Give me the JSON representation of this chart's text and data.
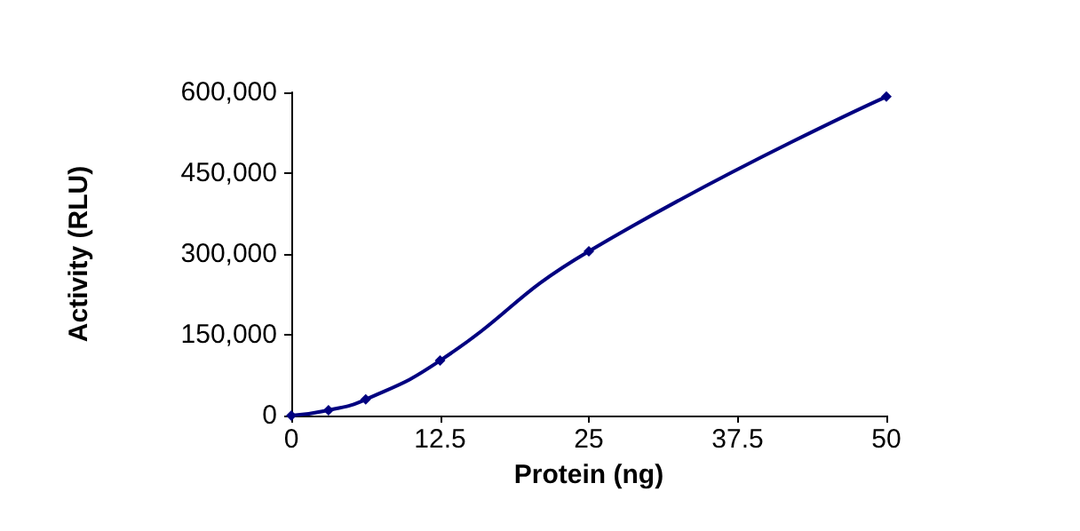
{
  "chart_data": {
    "type": "line",
    "xlabel": "Protein (ng)",
    "ylabel": "Activity (RLU)",
    "x": [
      0,
      3.125,
      6.25,
      12.5,
      25,
      50
    ],
    "series": [
      {
        "color": "#000080",
        "values": [
          0,
          10000,
          30000,
          102000,
          305000,
          592000
        ]
      }
    ],
    "xlim": [
      0,
      50
    ],
    "xticks": [
      0,
      12.5,
      25,
      37.5,
      50
    ],
    "ylim": [
      0,
      600000
    ],
    "yticks": [
      0,
      {
        "value": 150000,
        "label": "150,000"
      },
      {
        "value": 300000,
        "label": "300,000"
      },
      {
        "value": 450000,
        "label": "450,000"
      },
      {
        "value": 600000,
        "label": "600,000"
      }
    ],
    "grid": false,
    "marker": "diamond",
    "line_style": "solid"
  }
}
